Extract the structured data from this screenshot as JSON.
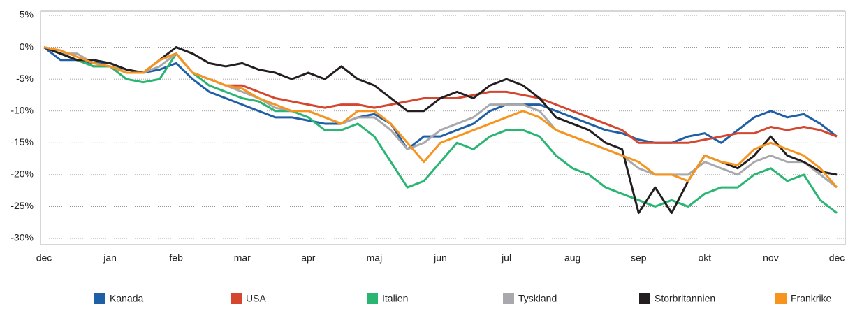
{
  "chart_data": {
    "type": "line",
    "categories": [
      "dec",
      null,
      null,
      null,
      "jan",
      null,
      null,
      null,
      "feb",
      null,
      null,
      null,
      "mar",
      null,
      null,
      null,
      "apr",
      null,
      null,
      null,
      "maj",
      null,
      null,
      null,
      "jun",
      null,
      null,
      null,
      "jul",
      null,
      null,
      null,
      "aug",
      null,
      null,
      null,
      "sep",
      null,
      null,
      null,
      "okt",
      null,
      null,
      null,
      "nov",
      null,
      null,
      null,
      "dec"
    ],
    "series": [
      {
        "name": "Kanada",
        "color": "#1f5fa6",
        "values": [
          0,
          -2,
          -2,
          -2.5,
          -2.5,
          -3.5,
          -4,
          -3.5,
          -2.5,
          -5,
          -7,
          -8,
          -9,
          -10,
          -11,
          -11,
          -11.5,
          -12,
          -12,
          -11,
          -10.5,
          -12,
          -16,
          -14,
          -14,
          -13,
          -12,
          -10,
          -9,
          -9,
          -9,
          -10,
          -11,
          -12,
          -13,
          -13.5,
          -14.5,
          -15,
          -15,
          -14,
          -13.5,
          -15,
          -13,
          -11,
          -10,
          -11,
          -10.5,
          -12,
          -14
        ]
      },
      {
        "name": "USA",
        "color": "#d4462e",
        "values": [
          0,
          -1,
          -2,
          -3,
          -3,
          -4,
          -4,
          -2,
          -1,
          -4,
          -5,
          -6,
          -6,
          -7,
          -8,
          -8.5,
          -9,
          -9.5,
          -9,
          -9,
          -9.5,
          -9,
          -8.5,
          -8,
          -8,
          -8,
          -7.5,
          -7,
          -7,
          -7.5,
          -8,
          -9,
          -10,
          -11,
          -12,
          -13,
          -15,
          -15,
          -15,
          -15,
          -14.5,
          -14,
          -13.5,
          -13.5,
          -12.5,
          -13,
          -12.5,
          -13,
          -14
        ]
      },
      {
        "name": "Italien",
        "color": "#2ab573",
        "values": [
          0,
          -1,
          -2,
          -3,
          -3,
          -5,
          -5.5,
          -5,
          -1,
          -4,
          -6,
          -7,
          -8,
          -8.5,
          -10,
          -10,
          -11,
          -13,
          -13,
          -12,
          -14,
          -18,
          -22,
          -21,
          -18,
          -15,
          -16,
          -14,
          -13,
          -13,
          -14,
          -17,
          -19,
          -20,
          -22,
          -23,
          -24,
          -25,
          -24,
          -25,
          -23,
          -22,
          -22,
          -20,
          -19,
          -21,
          -20,
          -24,
          -26
        ]
      },
      {
        "name": "Tyskland",
        "color": "#a7a9ac",
        "values": [
          0,
          -1,
          -1,
          -2.5,
          -3,
          -3.5,
          -4,
          -3,
          -1,
          -4,
          -5,
          -6,
          -7,
          -8,
          -9.5,
          -10,
          -10,
          -11,
          -12,
          -11,
          -11,
          -13,
          -16,
          -15,
          -13,
          -12,
          -11,
          -9,
          -9,
          -9,
          -10,
          -13,
          -14,
          -15,
          -16,
          -17,
          -19,
          -20,
          -20,
          -20,
          -18,
          -19,
          -20,
          -18,
          -17,
          -18,
          -18,
          -20,
          -22
        ]
      },
      {
        "name": "Storbritannien",
        "color": "#231f20",
        "values": [
          0,
          -1,
          -2,
          -2,
          -2.5,
          -3.5,
          -4,
          -2,
          0,
          -1,
          -2.5,
          -3,
          -2.5,
          -3.5,
          -4,
          -5,
          -4,
          -5,
          -3,
          -5,
          -6,
          -8,
          -10,
          -10,
          -8,
          -7,
          -8,
          -6,
          -5,
          -6,
          -8,
          -11,
          -12,
          -13,
          -15,
          -16,
          -26,
          -22,
          -26,
          -21,
          -17,
          -18,
          -19,
          -17,
          -14,
          -17,
          -18,
          -19.5,
          -20
        ]
      },
      {
        "name": "Frankrike",
        "color": "#f7941d",
        "values": [
          0,
          -0.5,
          -1.5,
          -2.5,
          -3,
          -4,
          -4,
          -2,
          -1,
          -4,
          -5,
          -6,
          -6.5,
          -8,
          -9,
          -10,
          -10,
          -11,
          -12,
          -10,
          -10,
          -12,
          -15,
          -18,
          -15,
          -14,
          -13,
          -12,
          -11,
          -10,
          -11,
          -13,
          -14,
          -15,
          -16,
          -17,
          -18,
          -20,
          -20,
          -21,
          -17,
          -18,
          -18.5,
          -16,
          -15,
          -16,
          -17,
          -19,
          -22
        ]
      }
    ],
    "ylim": [
      -30,
      5
    ],
    "yticks": [
      {
        "value": 5,
        "label": "5%"
      },
      {
        "value": 0,
        "label": "0%"
      },
      {
        "value": -5,
        "label": "-5%"
      },
      {
        "value": -10,
        "label": "-10%"
      },
      {
        "value": -15,
        "label": "-15%"
      },
      {
        "value": -20,
        "label": "-20%"
      },
      {
        "value": -25,
        "label": "-25%"
      },
      {
        "value": -30,
        "label": "-30%"
      }
    ],
    "grid": true
  }
}
